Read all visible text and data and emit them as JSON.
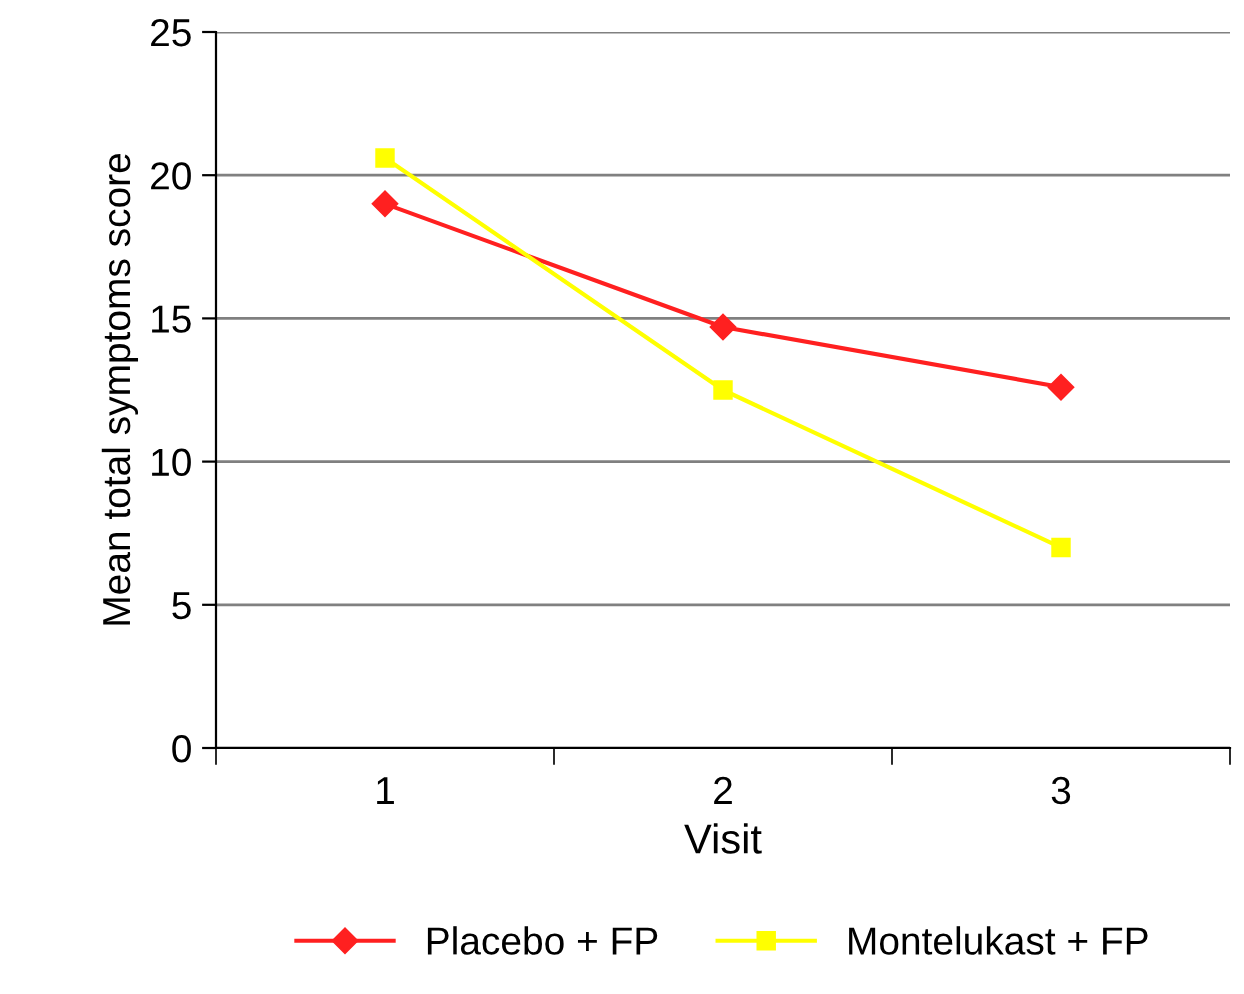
{
  "chart_data": {
    "type": "line",
    "xlabel": "Visit",
    "ylabel": "Mean total symptoms score",
    "categories": [
      "1",
      "2",
      "3"
    ],
    "series": [
      {
        "name": "Placebo + FP",
        "color": "#ff2020",
        "marker": "diamond",
        "values": [
          19.0,
          14.7,
          12.6
        ]
      },
      {
        "name": "Montelukast + FP",
        "color": "#ffff00",
        "marker": "square",
        "values": [
          20.6,
          12.5,
          7.0
        ]
      }
    ],
    "ylim": [
      0,
      25
    ],
    "yticks": [
      0,
      5,
      10,
      15,
      20,
      25
    ],
    "grid": "y",
    "legend": "bottom",
    "line_style": "solid"
  }
}
